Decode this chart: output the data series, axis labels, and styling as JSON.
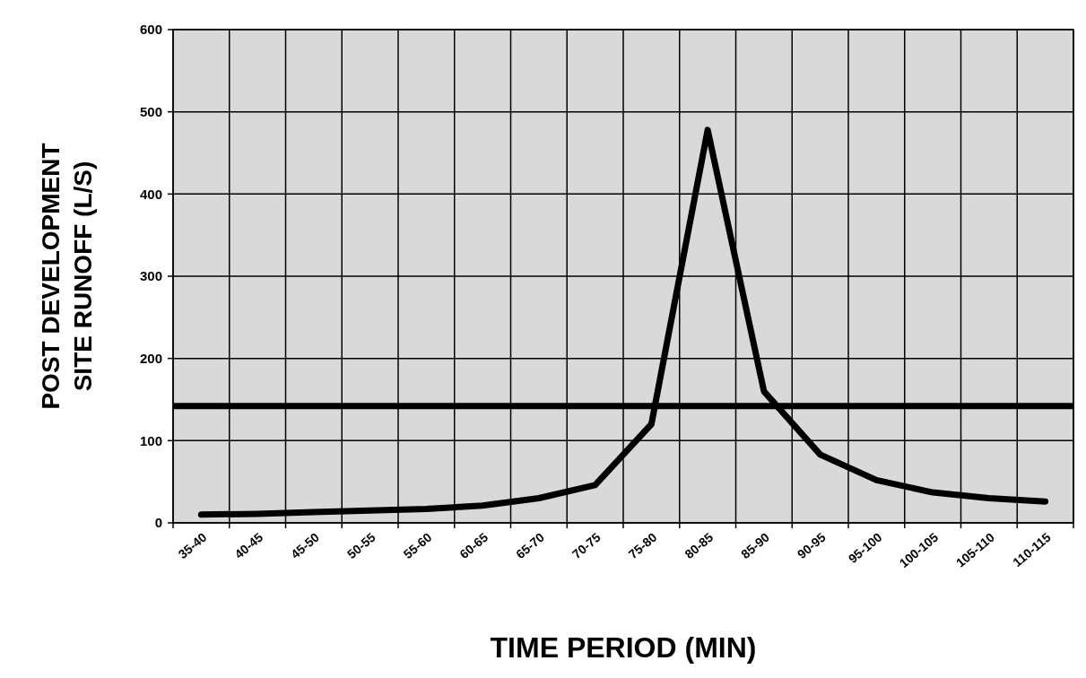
{
  "chart_data": {
    "type": "line",
    "xlabel": "TIME PERIOD (MIN)",
    "ylabel": "POST DEVELOPMENT\nSITE RUNOFF (L/S)",
    "categories": [
      "35-40",
      "40-45",
      "45-50",
      "50-55",
      "55-60",
      "60-65",
      "65-70",
      "70-75",
      "75-80",
      "80-85",
      "85-90",
      "90-95",
      "95-100",
      "100-105",
      "105-110",
      "110-115"
    ],
    "series": [
      {
        "color": "#000000",
        "values": [
          10,
          11,
          13,
          15,
          17,
          21,
          30,
          46,
          120,
          478,
          160,
          83,
          52,
          37,
          30,
          26
        ]
      }
    ],
    "ylim": [
      0,
      600
    ],
    "yticks": [
      0,
      100,
      200,
      300,
      400,
      500,
      600
    ],
    "grid": true,
    "marker": "none",
    "line_style": "solid",
    "ref_lines": [
      {
        "axis": "y",
        "value": 142,
        "color": "#000000",
        "line_style": "solid"
      }
    ]
  }
}
